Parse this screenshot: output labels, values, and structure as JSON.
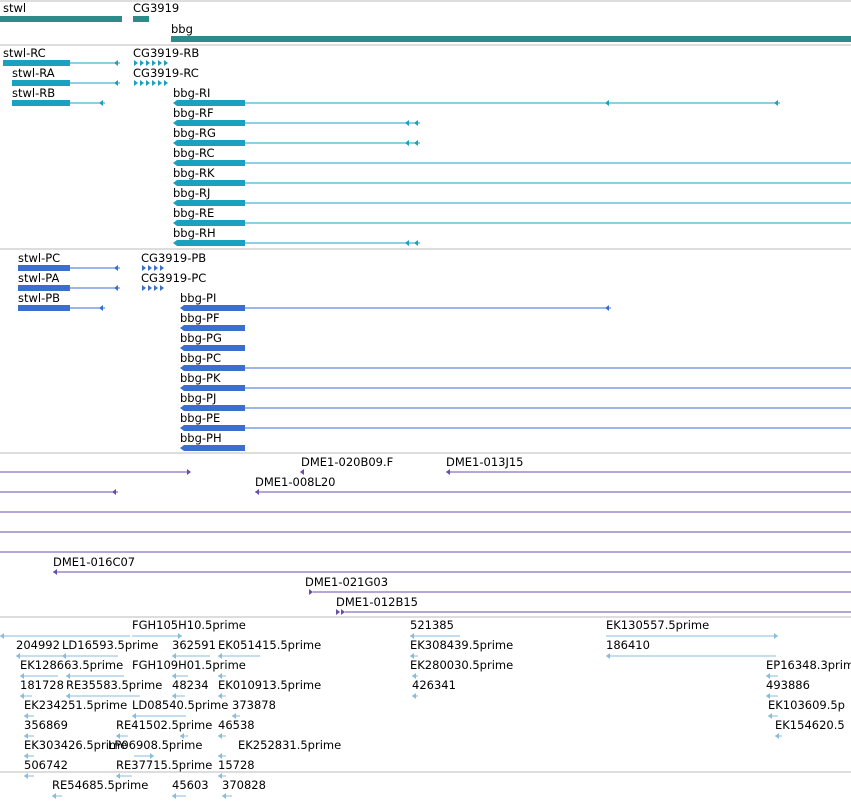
{
  "colors": {
    "gene": "#2e8b8b",
    "transcript": "#1ba0c0",
    "protein": "#3a6fcf",
    "clone": "#6a4caf",
    "est": "#88bde0",
    "divider": "#bbbbbb"
  },
  "tracks": {
    "genes": [
      {
        "label": "stwl"
      },
      {
        "label": "CG3919"
      },
      {
        "label": "bbg"
      }
    ],
    "transcripts": [
      {
        "label": "stwl-RC"
      },
      {
        "label": "CG3919-RB"
      },
      {
        "label": "stwl-RA"
      },
      {
        "label": "CG3919-RC"
      },
      {
        "label": "stwl-RB"
      },
      {
        "label": "bbg-RI"
      },
      {
        "label": "bbg-RF"
      },
      {
        "label": "bbg-RG"
      },
      {
        "label": "bbg-RC"
      },
      {
        "label": "bbg-RK"
      },
      {
        "label": "bbg-RJ"
      },
      {
        "label": "bbg-RE"
      },
      {
        "label": "bbg-RH"
      }
    ],
    "proteins": [
      {
        "label": "stwl-PC"
      },
      {
        "label": "CG3919-PB"
      },
      {
        "label": "stwl-PA"
      },
      {
        "label": "CG3919-PC"
      },
      {
        "label": "stwl-PB"
      },
      {
        "label": "bbg-PI"
      },
      {
        "label": "bbg-PF"
      },
      {
        "label": "bbg-PG"
      },
      {
        "label": "bbg-PC"
      },
      {
        "label": "bbg-PK"
      },
      {
        "label": "bbg-PJ"
      },
      {
        "label": "bbg-PE"
      },
      {
        "label": "bbg-PH"
      }
    ],
    "clones": [
      {
        "label": "DME1-020B09.F"
      },
      {
        "label": "DME1-013J15"
      },
      {
        "label": "DME1-008L20"
      },
      {
        "label": "DME1-016C07"
      },
      {
        "label": "DME1-021G03"
      },
      {
        "label": "DME1-012B15"
      }
    ],
    "ests": [
      {
        "label": "FGH105H10.5prime"
      },
      {
        "label": "521385"
      },
      {
        "label": "EK130557.5prime"
      },
      {
        "label": "204992"
      },
      {
        "label": "LD16593.5prime"
      },
      {
        "label": "362591"
      },
      {
        "label": "EK051415.5prime"
      },
      {
        "label": "EK308439.5prime"
      },
      {
        "label": "186410"
      },
      {
        "label": "EK128663.5prime"
      },
      {
        "label": "FGH109H01.5prime"
      },
      {
        "label": "EK280030.5prime"
      },
      {
        "label": "EP16348.3prim"
      },
      {
        "label": "181728"
      },
      {
        "label": "RE35583.5prime"
      },
      {
        "label": "48234"
      },
      {
        "label": "EK010913.5prime"
      },
      {
        "label": "426341"
      },
      {
        "label": "493886"
      },
      {
        "label": "EK234251.5prime"
      },
      {
        "label": "LD08540.5prime"
      },
      {
        "label": "373878"
      },
      {
        "label": "EK103609.5p"
      },
      {
        "label": "356869"
      },
      {
        "label": "RE41502.5prime"
      },
      {
        "label": "46538"
      },
      {
        "label": "EK154620.5"
      },
      {
        "label": "EK303426.5prime"
      },
      {
        "label": "LP06908.5prime"
      },
      {
        "label": "EK252831.5prime"
      },
      {
        "label": "506742"
      },
      {
        "label": "RE37715.5prime"
      },
      {
        "label": "15728"
      },
      {
        "label": "RE54685.5prime"
      },
      {
        "label": "45603"
      },
      {
        "label": "370828"
      }
    ]
  }
}
